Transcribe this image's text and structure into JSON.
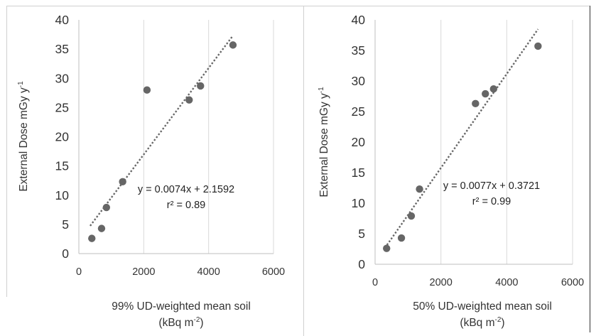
{
  "chart_data": [
    {
      "type": "scatter",
      "xlim": [
        0,
        6000
      ],
      "ylim": [
        0,
        40
      ],
      "x_ticks": [
        "0",
        "2000",
        "4000",
        "6000"
      ],
      "y_ticks": [
        "0",
        "5",
        "10",
        "15",
        "20",
        "25",
        "30",
        "35",
        "40"
      ],
      "ylabel": "External Dose mGy y",
      "ylabel_sup": "-1",
      "xlabel_line1": "99% UD-weighted mean soil",
      "xlabel_line2_main": "(kBq m",
      "xlabel_line2_sup": "-2",
      "xlabel_line2_end": ")",
      "grid": "vertical",
      "points": [
        {
          "x": 400,
          "y": 2.6
        },
        {
          "x": 700,
          "y": 4.3
        },
        {
          "x": 850,
          "y": 7.9
        },
        {
          "x": 1350,
          "y": 12.3
        },
        {
          "x": 2100,
          "y": 28.0
        },
        {
          "x": 3400,
          "y": 26.3
        },
        {
          "x": 3750,
          "y": 28.7
        },
        {
          "x": 4750,
          "y": 35.7
        }
      ],
      "trendline": {
        "slope": 0.0074,
        "intercept": 2.1592,
        "x_from": 350,
        "x_to": 4750
      },
      "equation": "y = 0.0074x + 2.1592",
      "r2_label": "r² = 0.89",
      "colors": {
        "points": "#666666",
        "trend": "#666666",
        "grid": "#d9d9d9",
        "axis": "#bfbfbf"
      }
    },
    {
      "type": "scatter",
      "xlim": [
        0,
        6000
      ],
      "ylim": [
        0,
        40
      ],
      "x_ticks": [
        "0",
        "2000",
        "4000",
        "6000"
      ],
      "y_ticks": [
        "0",
        "5",
        "10",
        "15",
        "20",
        "25",
        "30",
        "35",
        "40"
      ],
      "ylabel": "External Dose mGy y",
      "ylabel_sup": "-1",
      "xlabel_line1": "50% UD-weighted mean soil",
      "xlabel_line2_main": "(kBq m",
      "xlabel_line2_sup": "-2",
      "xlabel_line2_end": ")",
      "grid": "vertical",
      "points": [
        {
          "x": 350,
          "y": 2.6
        },
        {
          "x": 800,
          "y": 4.3
        },
        {
          "x": 1100,
          "y": 7.9
        },
        {
          "x": 1350,
          "y": 12.3
        },
        {
          "x": 3050,
          "y": 26.3
        },
        {
          "x": 3350,
          "y": 27.9
        },
        {
          "x": 3600,
          "y": 28.7
        },
        {
          "x": 4950,
          "y": 35.7
        }
      ],
      "trendline": {
        "slope": 0.0077,
        "intercept": 0.3721,
        "x_from": 300,
        "x_to": 4950
      },
      "equation": "y = 0.0077x + 0.3721",
      "r2_label": "r² = 0.99",
      "colors": {
        "points": "#666666",
        "trend": "#666666",
        "grid": "#d9d9d9",
        "axis": "#bfbfbf"
      }
    }
  ]
}
